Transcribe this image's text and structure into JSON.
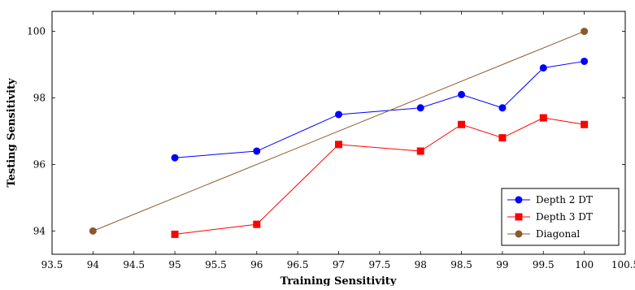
{
  "chart_data": {
    "type": "line",
    "title": "",
    "xlabel": "Training Sensitivity",
    "ylabel": "Testing Sensitivity",
    "xlim": [
      93.5,
      100.5
    ],
    "ylim": [
      93.3,
      100.6
    ],
    "x_ticks": [
      93.5,
      94,
      94.5,
      95,
      95.5,
      96,
      96.5,
      97,
      97.5,
      98,
      98.5,
      99,
      99.5,
      100,
      100.5
    ],
    "x_tick_labels": [
      "93.5",
      "94",
      "94.5",
      "95",
      "95.5",
      "96",
      "96.5",
      "97",
      "97.5",
      "98",
      "98.5",
      "99",
      "99.5",
      "100",
      "100.5"
    ],
    "y_ticks": [
      94,
      96,
      98,
      100
    ],
    "y_tick_labels": [
      "94",
      "96",
      "98",
      "100"
    ],
    "grid": false,
    "legend_position": "bottom-right",
    "series": [
      {
        "name": "Depth 2 DT",
        "color": "#0000ff",
        "marker": "circle",
        "x": [
          95,
          96,
          97,
          98,
          98.5,
          99,
          99.5,
          100
        ],
        "y": [
          96.2,
          96.4,
          97.5,
          97.7,
          98.1,
          97.7,
          98.9,
          99.1
        ]
      },
      {
        "name": "Depth 3 DT",
        "color": "#ff0000",
        "marker": "square",
        "x": [
          95,
          96,
          97,
          98,
          98.5,
          99,
          99.5,
          100
        ],
        "y": [
          93.9,
          94.2,
          96.6,
          96.4,
          97.2,
          96.8,
          97.4,
          97.2
        ]
      },
      {
        "name": "Diagonal",
        "color": "#8b5a2b",
        "marker": "circle",
        "x": [
          94,
          100
        ],
        "y": [
          94,
          100
        ]
      }
    ]
  }
}
